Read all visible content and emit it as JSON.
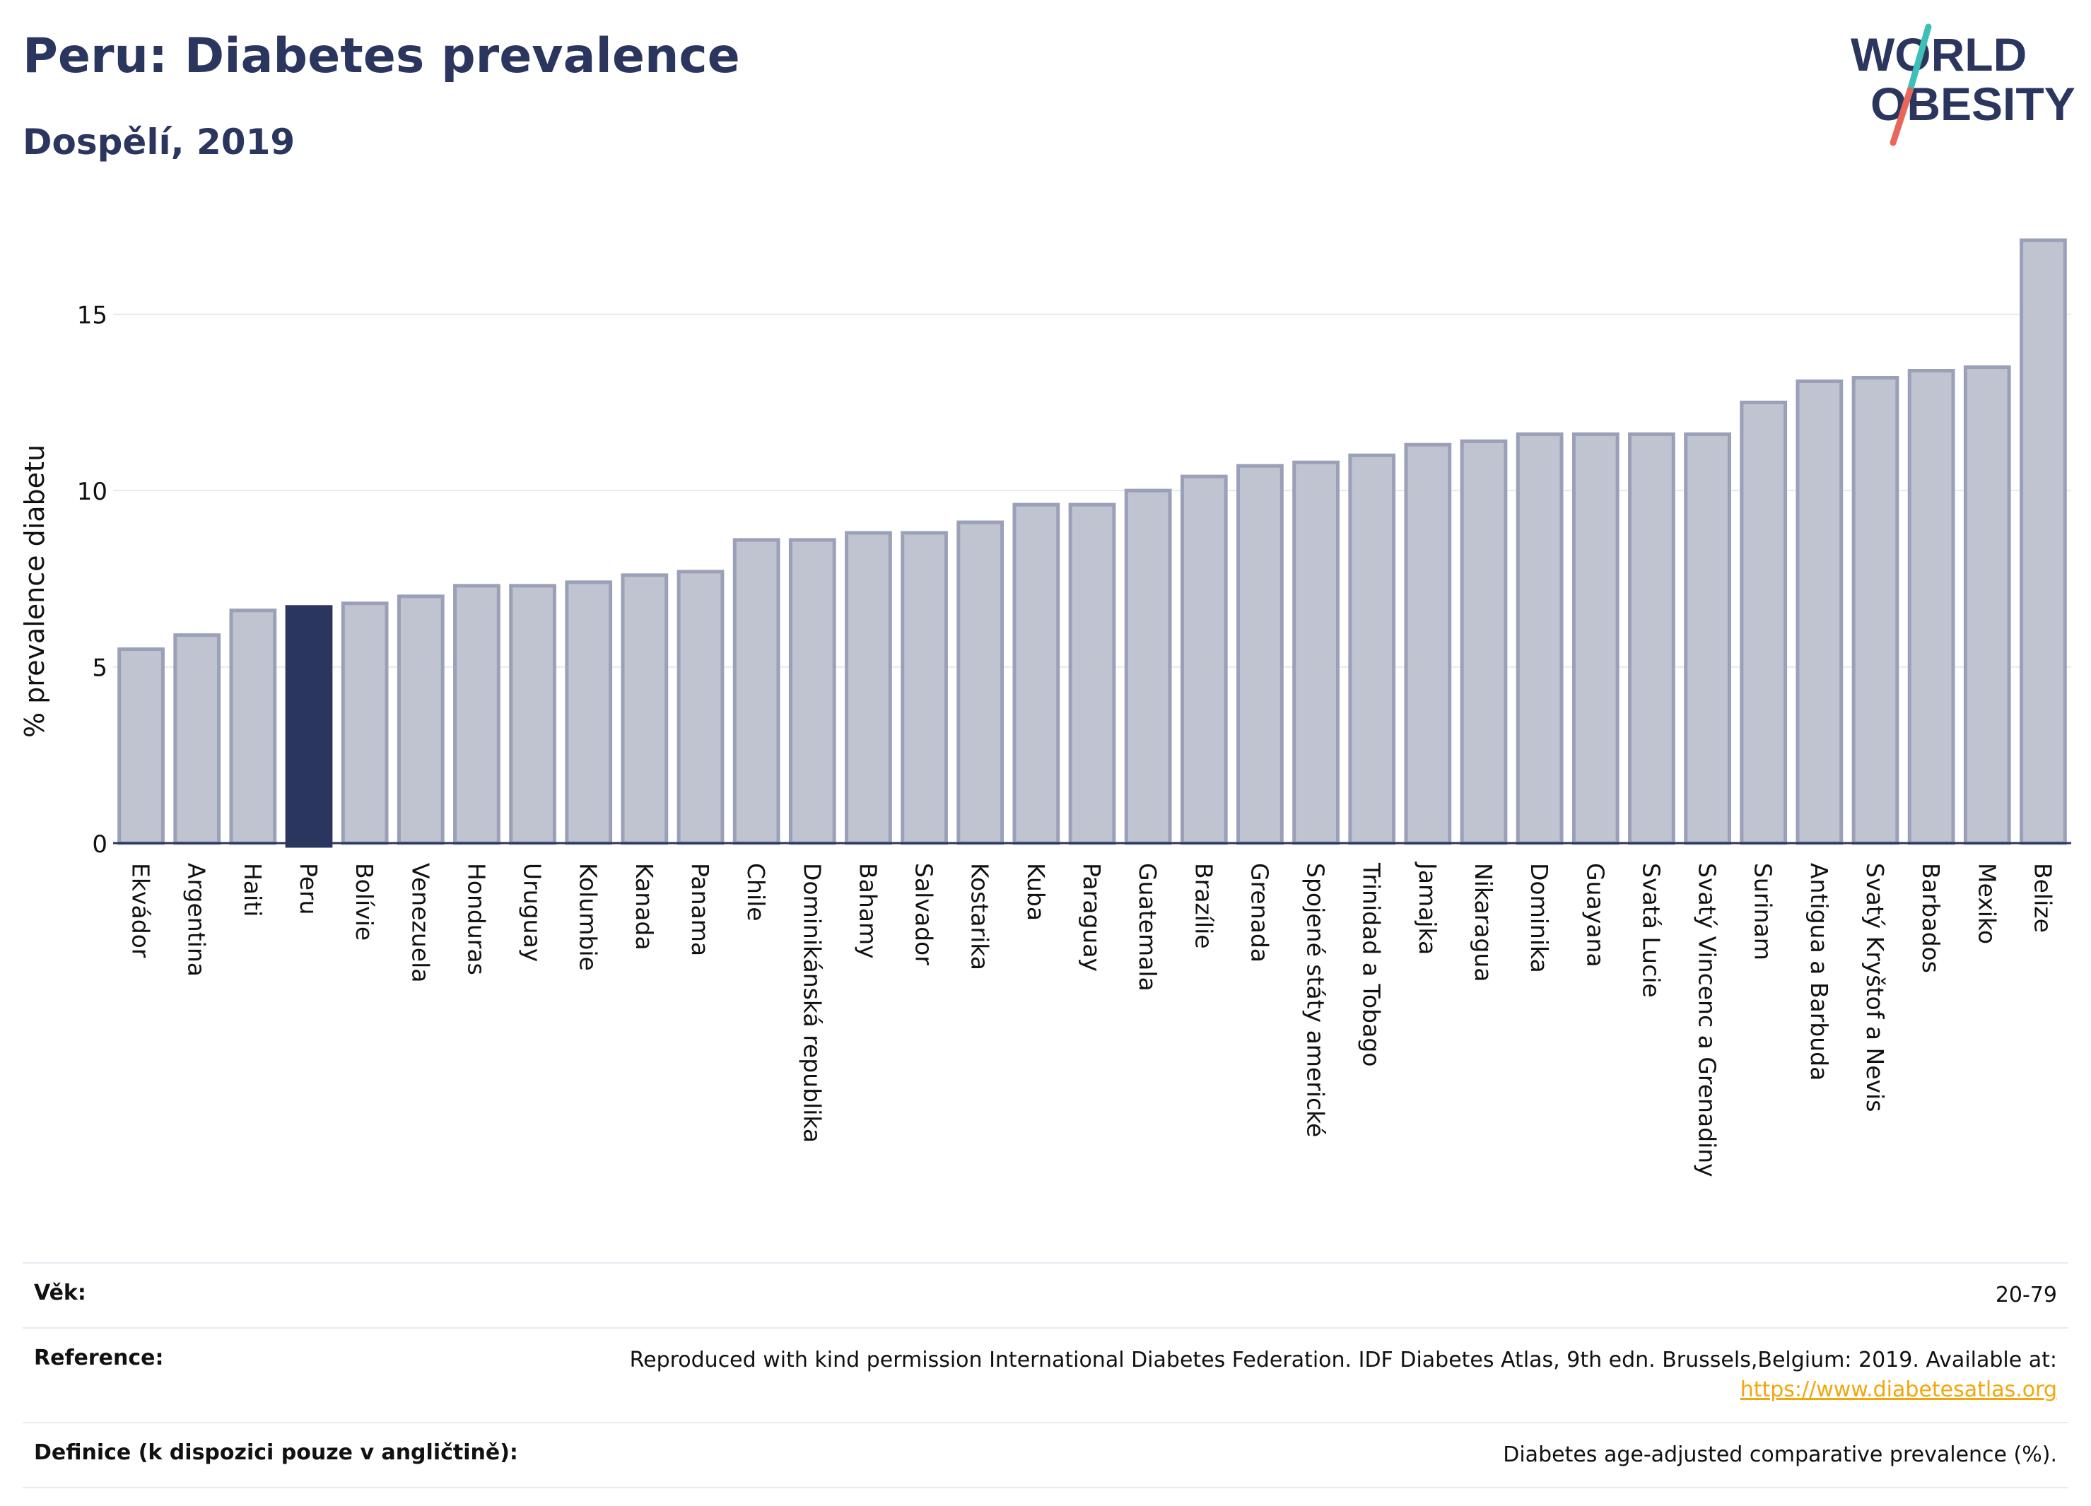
{
  "header": {
    "title": "Peru: Diabetes prevalence",
    "subtitle": "Dospělí, 2019"
  },
  "logo": {
    "line1": "WORLD",
    "line2": "OBESITY"
  },
  "colors": {
    "bar": "#c0c4d1",
    "bar_stroke": "#9aa0b7",
    "highlight": "#2b365f",
    "grid": "#e6e8ef",
    "axis": "#2b365f",
    "logo_teal": "#3ebfb7",
    "logo_coral": "#e8675a"
  },
  "chart_data": {
    "type": "bar",
    "title": "Peru: Diabetes prevalence",
    "subtitle": "Dospělí, 2019",
    "ylabel": "% prevalence diabetu",
    "xlabel": "",
    "ylim": [
      0,
      17.5
    ],
    "yticks": [
      0,
      5,
      10,
      15
    ],
    "grid": true,
    "highlight": "Peru",
    "categories": [
      "Ekvádor",
      "Argentina",
      "Haiti",
      "Peru",
      "Bolívie",
      "Venezuela",
      "Honduras",
      "Uruguay",
      "Kolumbie",
      "Kanada",
      "Panama",
      "Chile",
      "Dominikánská republika",
      "Bahamy",
      "Salvador",
      "Kostarika",
      "Kuba",
      "Paraguay",
      "Guatemala",
      "Brazílie",
      "Grenada",
      "Spojené státy americké",
      "Trinidad a Tobago",
      "Jamajka",
      "Nikaragua",
      "Dominika",
      "Guayana",
      "Svatá Lucie",
      "Svatý Vincenc a Grenadiny",
      "Surinam",
      "Antigua a Barbuda",
      "Svatý Kryštof a Nevis",
      "Barbados",
      "Mexiko",
      "Belize"
    ],
    "values": [
      5.5,
      5.9,
      6.6,
      6.7,
      6.8,
      7.0,
      7.3,
      7.3,
      7.4,
      7.6,
      7.7,
      8.6,
      8.6,
      8.8,
      8.8,
      9.1,
      9.6,
      9.6,
      10.0,
      10.4,
      10.7,
      10.8,
      11.0,
      11.3,
      11.4,
      11.6,
      11.6,
      11.6,
      11.6,
      12.5,
      13.1,
      13.2,
      13.4,
      13.5,
      17.1
    ]
  },
  "meta": {
    "age_label": "Věk:",
    "age_value": "20-79",
    "reference_label": "Reference:",
    "reference_text": "Reproduced with kind permission International Diabetes Federation. IDF Diabetes Atlas, 9th edn. Brussels,Belgium: 2019. Available at:",
    "reference_link": "https://www.diabetesatlas.org",
    "definition_label": "Definice (k dispozici pouze v angličtině):",
    "definition_value": "Diabetes age-adjusted comparative prevalence (%)."
  }
}
